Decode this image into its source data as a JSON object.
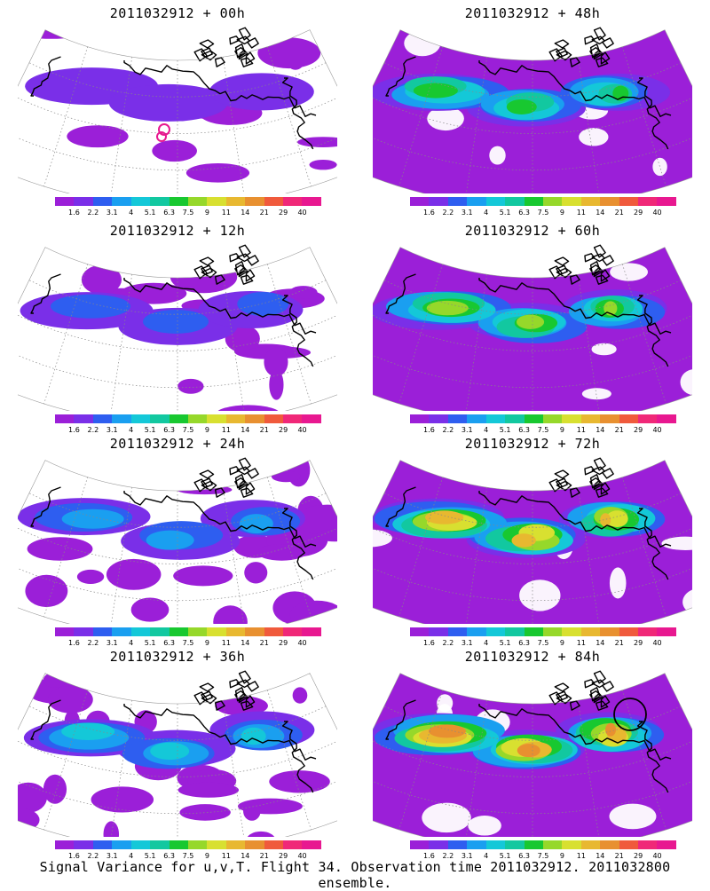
{
  "caption": "Signal Variance for u,v,T. Flight 34. Observation time 2011032912. 2011032800 ensemble.",
  "colorbar": {
    "labels": [
      "1.6",
      "2.2",
      "3.1",
      "4",
      "5.1",
      "6.3",
      "7.5",
      "9",
      "11",
      "14",
      "21",
      "29",
      "40"
    ],
    "colors": [
      "#9b1fd8",
      "#7a2fe8",
      "#2e5ef0",
      "#1a9ff0",
      "#14c8d8",
      "#12c8a0",
      "#18c830",
      "#96d82a",
      "#d8e030",
      "#e8b830",
      "#e89030",
      "#f05a3c",
      "#f02878",
      "#e81890"
    ]
  },
  "panels": [
    {
      "title": "2011032912 + 00h",
      "intensity": 0.05,
      "marker": "target-small"
    },
    {
      "title": "2011032912 + 48h",
      "intensity": 0.55,
      "marker": "none"
    },
    {
      "title": "2011032912 + 12h",
      "intensity": 0.15,
      "marker": "none"
    },
    {
      "title": "2011032912 + 60h",
      "intensity": 0.65,
      "marker": "none"
    },
    {
      "title": "2011032912 + 24h",
      "intensity": 0.28,
      "marker": "none"
    },
    {
      "title": "2011032912 + 72h",
      "intensity": 0.78,
      "marker": "none"
    },
    {
      "title": "2011032912 + 36h",
      "intensity": 0.4,
      "marker": "none"
    },
    {
      "title": "2011032912 + 84h",
      "intensity": 0.9,
      "marker": "circle-black"
    }
  ]
}
